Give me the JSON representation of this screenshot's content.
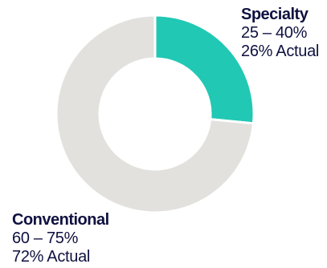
{
  "chart_data": {
    "type": "pie",
    "variant": "donut",
    "legend": "none",
    "slices": [
      {
        "name": "Specialty",
        "range": "25 – 40%",
        "actual": "26% Actual",
        "value": 26,
        "color": "#21c8b4"
      },
      {
        "name": "Conventional",
        "range": "60 – 75%",
        "actual": "72% Actual",
        "value": 72,
        "color": "#e2e1dd"
      }
    ]
  }
}
